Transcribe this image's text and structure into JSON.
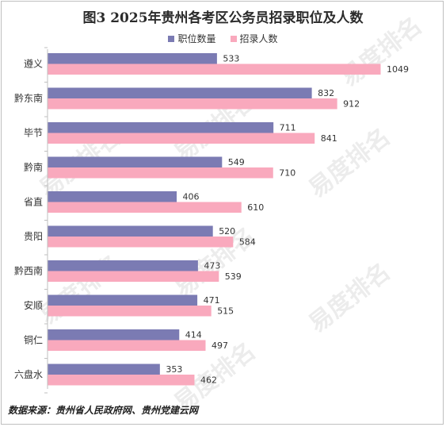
{
  "chart_data": {
    "type": "bar",
    "orientation": "horizontal",
    "title": "图3  2025年贵州各考区公务员招录职位及人数",
    "categories": [
      "遵义",
      "黔东南",
      "毕节",
      "黔南",
      "省直",
      "贵阳",
      "黔西南",
      "安顺",
      "铜仁",
      "六盘水"
    ],
    "series": [
      {
        "name": "职位数量",
        "color": "#7b7bb3",
        "values": [
          533,
          832,
          711,
          549,
          406,
          520,
          473,
          471,
          414,
          353
        ]
      },
      {
        "name": "招录人数",
        "color": "#f9a9bd",
        "values": [
          1049,
          912,
          841,
          710,
          610,
          584,
          539,
          515,
          497,
          462
        ]
      }
    ],
    "xlim": [
      0,
      1150
    ],
    "grid": false,
    "legend_position": "top"
  },
  "source_text": "数据来源：贵州省人民政府网、贵州党建云网",
  "watermark_text": "易度排名"
}
